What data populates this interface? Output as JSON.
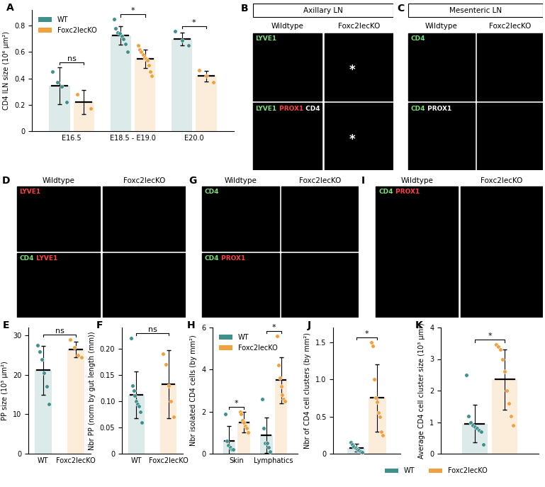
{
  "chart_data": [
    {
      "type": "bar",
      "title": "A",
      "y_label": "CD4 ILN size (10⁶ µm²)",
      "categories": [
        "E16.5",
        "E18.5 - E19.0",
        "E20.0"
      ],
      "series": [
        {
          "name": "WT",
          "color": "#3f8f8c",
          "values": [
            0.345,
            0.725,
            0.7
          ],
          "errors": [
            0.14,
            0.07,
            0.05
          ],
          "points": [
            [
              0.45,
              0.37,
              0.34,
              0.22
            ],
            [
              0.85,
              0.78,
              0.75,
              0.74,
              0.72,
              0.7,
              0.66,
              0.6
            ],
            [
              0.76,
              0.69,
              0.65
            ]
          ]
        },
        {
          "name": "Foxc2lecKO",
          "color": "#f0a03c",
          "values": [
            0.22,
            0.547,
            0.417
          ],
          "errors": [
            0.09,
            0.07,
            0.04
          ],
          "points": [
            [
              0.28,
              0.17
            ],
            [
              0.65,
              0.62,
              0.6,
              0.58,
              0.56,
              0.55,
              0.54,
              0.5,
              0.45,
              0.42
            ],
            [
              0.46,
              0.42,
              0.37
            ]
          ]
        }
      ],
      "ylim": [
        0,
        0.92
      ],
      "yticks": [
        0,
        0.2,
        0.4,
        0.6,
        0.8
      ],
      "legend": "upper left",
      "annotations": [
        {
          "text": "ns",
          "from": [
            0,
            0
          ],
          "to": [
            0,
            1
          ]
        },
        {
          "text": "*",
          "from": [
            1,
            0
          ],
          "to": [
            1,
            1
          ]
        },
        {
          "text": "*",
          "from": [
            2,
            0
          ],
          "to": [
            2,
            1
          ]
        }
      ]
    },
    {
      "type": "bar",
      "title": "E",
      "y_label": "PP size (10³ µm²)",
      "categories": [
        "WT",
        "Foxc2lecKO"
      ],
      "series": [
        {
          "colors": [
            "#3f8f8c",
            "#f0a03c"
          ],
          "values": [
            21.2,
            26.4
          ],
          "errors": [
            6.2,
            2.0
          ],
          "points": [
            [
              27.5,
              25.8,
              24,
              20.5,
              17,
              12.5
            ],
            [
              29,
              27,
              25,
              24.5
            ]
          ]
        }
      ],
      "ylim": [
        0,
        32
      ],
      "yticks": [
        0,
        10,
        20,
        30
      ],
      "annotations": [
        {
          "text": "ns",
          "from": [
            0,
            0
          ],
          "to": [
            1,
            0
          ]
        }
      ]
    },
    {
      "type": "bar",
      "title": "F",
      "y_label": "Nbr PP (norm by gut length (mm))",
      "categories": [
        "WT",
        "Foxc2lecKO"
      ],
      "series": [
        {
          "colors": [
            "#3f8f8c",
            "#f0a03c"
          ],
          "values": [
            0.112,
            0.132
          ],
          "errors": [
            0.045,
            0.065
          ],
          "points": [
            [
              0.22,
              0.13,
              0.12,
              0.11,
              0.1,
              0.095,
              0.09,
              0.08,
              0.06
            ],
            [
              0.19,
              0.17,
              0.13,
              0.1,
              0.07
            ]
          ]
        }
      ],
      "ylim": [
        0,
        0.24
      ],
      "yticks": [
        0,
        0.05,
        {
          "value": 0.1,
          "label": "0.10"
        },
        0.15,
        {
          "value": 0.2,
          "label": "0.20"
        }
      ],
      "annotations": [
        {
          "text": "ns",
          "from": [
            0,
            0
          ],
          "to": [
            1,
            0
          ]
        }
      ]
    },
    {
      "type": "bar",
      "title": "H",
      "y_label": "Nbr isolated CD4 cells (by mm²)",
      "categories": [
        "Skin",
        "Lymphatics"
      ],
      "series": [
        {
          "name": "WT",
          "color": "#3f8f8c",
          "values": [
            0.6,
            0.87
          ],
          "errors": [
            0.7,
            0.85
          ],
          "points": [
            [
              1.9,
              0.6,
              0.4,
              0.3,
              0.2,
              0.2
            ],
            [
              2.6,
              1.2,
              0.5,
              0.5,
              0.3,
              0.1
            ]
          ]
        },
        {
          "name": "Foxc2lecKO",
          "color": "#f0a03c",
          "values": [
            1.5,
            3.5
          ],
          "errors": [
            0.5,
            1.1
          ],
          "points": [
            [
              2.0,
              1.9,
              1.6,
              1.5,
              1.3,
              1.2,
              1.0
            ],
            [
              5.6,
              4.2,
              3.6,
              3.2,
              2.8,
              2.6,
              2.5
            ]
          ]
        }
      ],
      "ylim": [
        0,
        6
      ],
      "yticks": [
        0,
        2,
        4,
        6
      ],
      "legend": "upper left",
      "annotations": [
        {
          "text": "*",
          "from": [
            0,
            0
          ],
          "to": [
            0,
            1
          ]
        },
        {
          "text": "*",
          "from": [
            1,
            0
          ],
          "to": [
            1,
            1
          ]
        }
      ]
    },
    {
      "type": "bar",
      "title": "J",
      "y_label": "Nbr of CD4 cell clusters (by mm²)",
      "categories": [
        null
      ],
      "tick_labels": "y",
      "series": [
        {
          "name": "WT",
          "color": "#3f8f8c",
          "values": [
            0.08
          ],
          "errors": [
            0.05
          ],
          "points": [
            [
              0.15,
              0.12,
              0.1,
              0.08,
              0.06,
              0.05,
              0.03,
              0.02
            ]
          ]
        },
        {
          "name": "Foxc2lecKO",
          "color": "#f0a03c",
          "values": [
            0.75
          ],
          "errors": [
            0.45
          ],
          "points": [
            [
              1.5,
              1.45,
              1.0,
              0.75,
              0.7,
              0.55,
              0.5,
              0.3,
              0.25
            ]
          ]
        }
      ],
      "ylim": [
        0,
        1.7
      ],
      "yticks": [
        0,
        0.5,
        {
          "value": 1,
          "label": "1.0"
        },
        1.5
      ],
      "legend": "lower center",
      "annotations": [
        {
          "text": "*",
          "from": [
            0,
            0
          ],
          "to": [
            0,
            1
          ]
        }
      ]
    },
    {
      "type": "bar",
      "title": "K",
      "y_label": "Average CD4 cell cluster size (10³ µm²)",
      "categories": [
        null
      ],
      "tick_labels": "y",
      "series": [
        {
          "color": "#3f8f8c",
          "values": [
            0.95
          ],
          "errors": [
            0.6
          ],
          "points": [
            [
              2.5,
              1.2,
              1.0,
              0.9,
              0.85,
              0.8,
              0.75,
              0.7,
              0.3
            ]
          ]
        },
        {
          "color": "#f0a03c",
          "values": [
            2.35
          ],
          "errors": [
            0.95
          ],
          "points": [
            [
              3.45,
              3.4,
              3.3,
              3.0,
              2.6,
              2.0,
              1.6,
              1.2,
              0.9
            ]
          ]
        }
      ],
      "ylim": [
        0,
        4
      ],
      "yticks": [
        0,
        1,
        2,
        3,
        4
      ],
      "annotations": [
        {
          "text": "*",
          "from": [
            0,
            0
          ],
          "to": [
            0,
            1
          ]
        }
      ]
    }
  ],
  "images": [
    {
      "panel": "B",
      "header": "Axillary LN",
      "columns": [
        "Wildtype",
        "Foxc2lecKO"
      ],
      "rows": [
        [
          {
            "text": "LYVE1",
            "color": "#7ee07e"
          }
        ],
        [
          {
            "text": "LYVE1",
            "color": "#7ee07e"
          },
          {
            "text": "PROX1",
            "color": "#ff4040"
          },
          {
            "text": "CD4",
            "color": "#ffffff"
          }
        ]
      ],
      "marks": [
        {
          "row": 0,
          "col": 1,
          "text": "*"
        },
        {
          "row": 1,
          "col": 1,
          "text": "*"
        }
      ]
    },
    {
      "panel": "C",
      "header": "Mesenteric LN",
      "columns": [
        "Wildtype",
        "Foxc2lecKO"
      ],
      "rows": [
        [
          {
            "text": "CD4",
            "color": "#7ee07e"
          }
        ],
        [
          {
            "text": "CD4",
            "color": "#7ee07e"
          },
          {
            "text": "PROX1",
            "color": "#ffffff"
          }
        ]
      ]
    },
    {
      "panel": "D",
      "columns": [
        "Wildtype",
        "Foxc2lecKO"
      ],
      "rows": [
        [
          {
            "text": "LYVE1",
            "color": "#ff4040"
          }
        ],
        [
          {
            "text": "CD4",
            "color": "#7ee07e"
          },
          {
            "text": "LYVE1",
            "color": "#ff4040"
          }
        ]
      ]
    },
    {
      "panel": "G",
      "columns": [
        "Wildtype",
        "Foxc2lecKO"
      ],
      "rows": [
        [
          {
            "text": "CD4",
            "color": "#7ee07e"
          }
        ],
        [
          {
            "text": "CD4",
            "color": "#7ee07e"
          },
          {
            "text": "PROX1",
            "color": "#ff4040"
          }
        ]
      ]
    },
    {
      "panel": "I",
      "columns": [
        "Wildtype",
        "Foxc2lecKO"
      ],
      "rows": [
        [
          {
            "text": "CD4",
            "color": "#7ee07e"
          },
          {
            "text": "PROX1",
            "color": "#ff4040"
          }
        ]
      ]
    }
  ]
}
